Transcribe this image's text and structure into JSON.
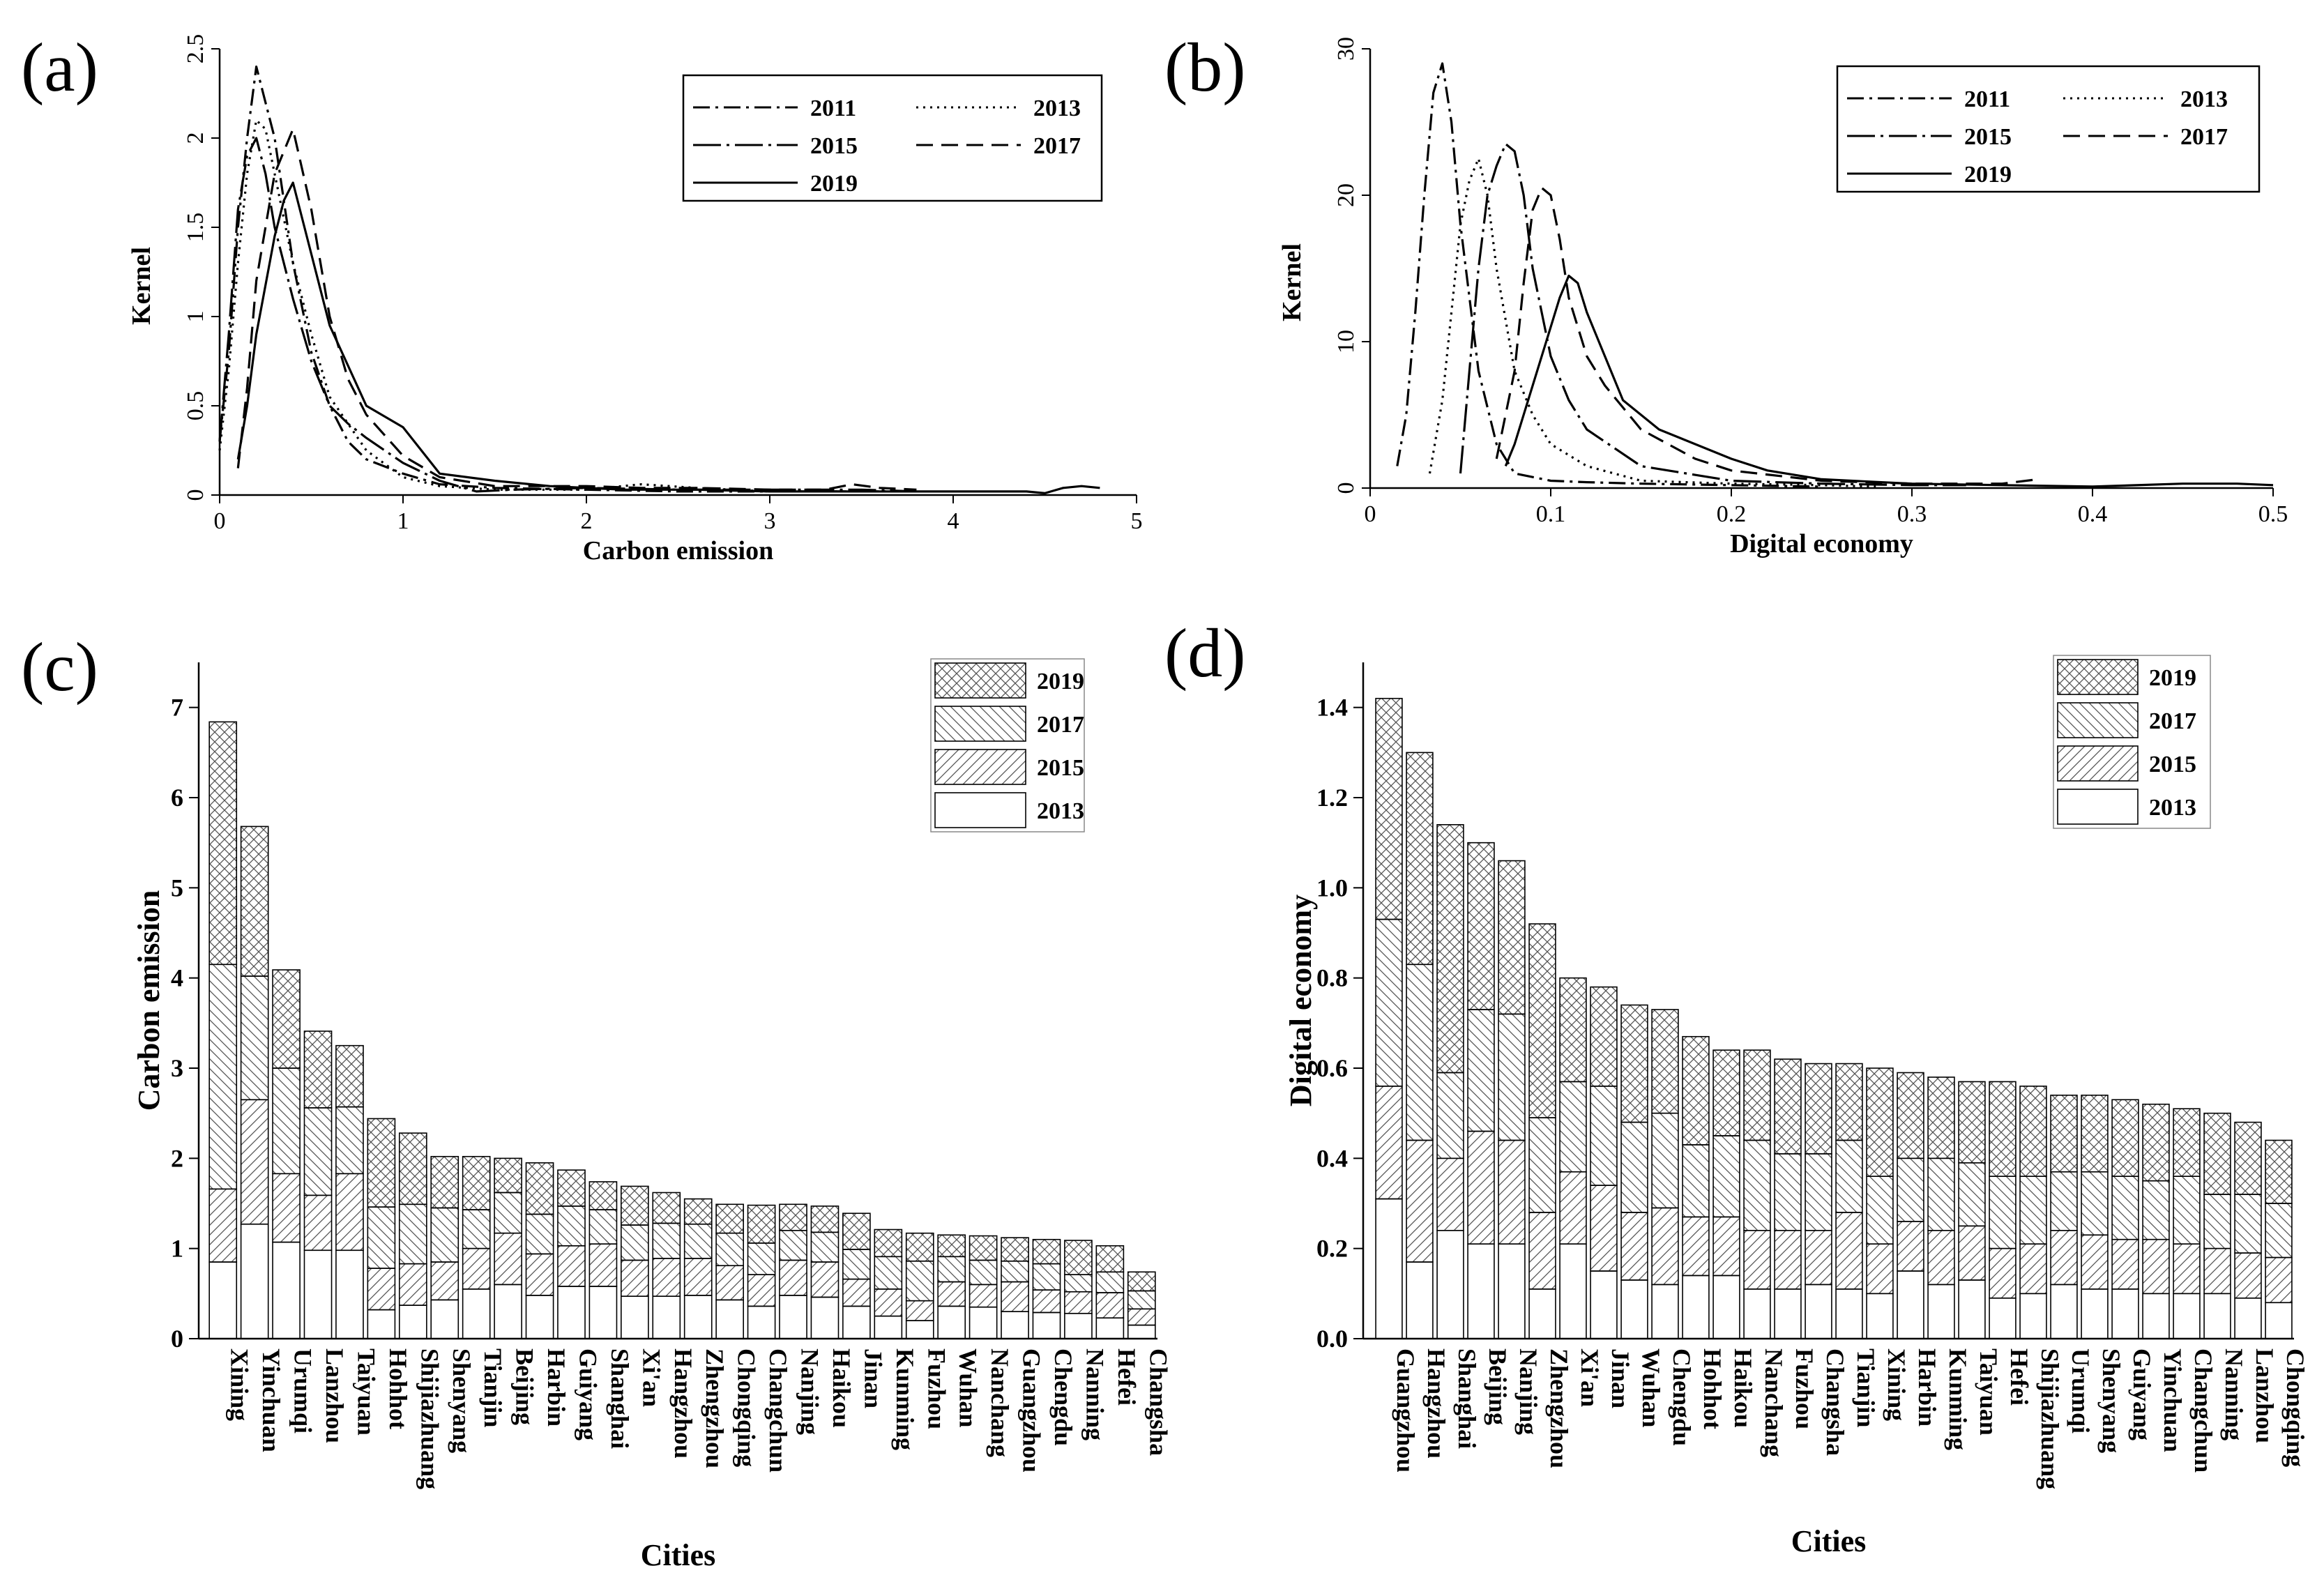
{
  "chart_data": [
    {
      "panel": "(a)",
      "type": "line",
      "xlabel": "Carbon emission",
      "ylabel": "Kernel",
      "xlim": [
        0,
        5
      ],
      "ylim": [
        0,
        2.5
      ],
      "xticks": [
        "0",
        "1",
        "2",
        "3",
        "4",
        "5"
      ],
      "yticks": [
        "0",
        "0.5",
        "1",
        "1.5",
        "2",
        "2.5"
      ],
      "legend_position": "top-right",
      "series": [
        {
          "name": "2011",
          "dash": "dash-dot",
          "x": [
            0,
            0.05,
            0.1,
            0.15,
            0.2,
            0.3,
            0.4,
            0.5,
            0.6,
            0.7,
            0.8,
            1.0,
            1.2,
            1.5,
            2,
            2.5,
            3,
            3.5,
            3.8
          ],
          "y": [
            0.3,
            0.8,
            1.5,
            2.0,
            2.4,
            2.0,
            1.3,
            0.8,
            0.5,
            0.3,
            0.2,
            0.12,
            0.06,
            0.04,
            0.03,
            0.02,
            0.02,
            0.02,
            0.02
          ]
        },
        {
          "name": "2013",
          "dash": "dot",
          "x": [
            0,
            0.05,
            0.1,
            0.15,
            0.2,
            0.25,
            0.3,
            0.4,
            0.5,
            0.6,
            0.8,
            1.0,
            1.2,
            1.5,
            2,
            2.3,
            2.6,
            3,
            3.5,
            3.8
          ],
          "y": [
            0.25,
            0.7,
            1.3,
            1.8,
            2.1,
            2.05,
            1.8,
            1.3,
            0.9,
            0.55,
            0.25,
            0.1,
            0.05,
            0.03,
            0.03,
            0.06,
            0.04,
            0.02,
            0.02,
            0.02
          ]
        },
        {
          "name": "2015",
          "dash": "dash-dot-long",
          "x": [
            0,
            0.05,
            0.1,
            0.15,
            0.2,
            0.25,
            0.3,
            0.4,
            0.5,
            0.6,
            0.7,
            0.8,
            1.0,
            1.2,
            1.4,
            1.6,
            2,
            2.5,
            3,
            3.5,
            3.8
          ],
          "y": [
            0.3,
            0.9,
            1.6,
            1.9,
            2.0,
            1.8,
            1.5,
            1.1,
            0.75,
            0.5,
            0.4,
            0.32,
            0.18,
            0.08,
            0.02,
            0.03,
            0.04,
            0.03,
            0.03,
            0.03,
            0.02
          ]
        },
        {
          "name": "2017",
          "dash": "dash",
          "x": [
            0.1,
            0.15,
            0.2,
            0.3,
            0.4,
            0.5,
            0.6,
            0.7,
            0.8,
            1.0,
            1.2,
            1.5,
            2,
            2.3,
            2.6,
            3,
            3.3,
            3.45,
            3.6,
            3.8
          ],
          "y": [
            0.15,
            0.6,
            1.2,
            1.8,
            2.05,
            1.6,
            1.0,
            0.65,
            0.45,
            0.22,
            0.1,
            0.05,
            0.05,
            0.04,
            0.04,
            0.03,
            0.03,
            0.06,
            0.04,
            0.03
          ]
        },
        {
          "name": "2019",
          "dash": "solid",
          "x": [
            0.1,
            0.15,
            0.2,
            0.3,
            0.35,
            0.4,
            0.5,
            0.6,
            0.8,
            1.0,
            1.2,
            1.5,
            1.8,
            2.2,
            2.6,
            3,
            3.5,
            4,
            4.4,
            4.5,
            4.6,
            4.7,
            4.8
          ],
          "y": [
            0.2,
            0.5,
            0.9,
            1.45,
            1.65,
            1.75,
            1.35,
            0.95,
            0.5,
            0.38,
            0.12,
            0.08,
            0.05,
            0.03,
            0.03,
            0.02,
            0.02,
            0.02,
            0.02,
            0.01,
            0.04,
            0.05,
            0.04
          ]
        }
      ]
    },
    {
      "panel": "(b)",
      "type": "line",
      "xlabel": "Digital economy",
      "ylabel": "Kernel",
      "xlim": [
        0,
        0.5
      ],
      "ylim": [
        0,
        30
      ],
      "xticks": [
        "0",
        "0.1",
        "0.2",
        "0.3",
        "0.4",
        "0.5"
      ],
      "yticks": [
        "0",
        "10",
        "20",
        "30"
      ],
      "legend_position": "top-right",
      "series": [
        {
          "name": "2011",
          "dash": "dash-dot",
          "x": [
            0.015,
            0.02,
            0.025,
            0.03,
            0.035,
            0.04,
            0.045,
            0.05,
            0.06,
            0.07,
            0.08,
            0.1,
            0.12,
            0.15,
            0.2,
            0.25
          ],
          "y": [
            1.5,
            5,
            12,
            20,
            27,
            29,
            25,
            18,
            8,
            3,
            1,
            0.5,
            0.4,
            0.3,
            0.2,
            0.1
          ]
        },
        {
          "name": "2013",
          "dash": "dot",
          "x": [
            0.033,
            0.04,
            0.045,
            0.05,
            0.055,
            0.06,
            0.065,
            0.07,
            0.08,
            0.09,
            0.1,
            0.12,
            0.15,
            0.2,
            0.25,
            0.28
          ],
          "y": [
            1,
            6,
            12,
            18,
            21,
            22.5,
            20,
            15,
            8,
            5,
            3,
            1.5,
            0.5,
            0.3,
            0.2,
            0.1
          ]
        },
        {
          "name": "2015",
          "dash": "dash-dot-long",
          "x": [
            0.05,
            0.055,
            0.06,
            0.065,
            0.07,
            0.075,
            0.08,
            0.085,
            0.09,
            0.1,
            0.11,
            0.12,
            0.15,
            0.2,
            0.25,
            0.3,
            0.33
          ],
          "y": [
            1,
            8,
            15,
            20,
            22,
            23.5,
            23,
            20,
            15,
            9,
            6,
            4,
            1.5,
            0.5,
            0.3,
            0.2,
            0.2
          ]
        },
        {
          "name": "2017",
          "dash": "dash",
          "x": [
            0.07,
            0.08,
            0.085,
            0.09,
            0.095,
            0.1,
            0.105,
            0.11,
            0.12,
            0.13,
            0.15,
            0.18,
            0.2,
            0.25,
            0.3,
            0.35,
            0.37
          ],
          "y": [
            2,
            8,
            14,
            19,
            20.5,
            20,
            17,
            13,
            9,
            7,
            4,
            2,
            1.2,
            0.5,
            0.3,
            0.3,
            0.6
          ]
        },
        {
          "name": "2019",
          "dash": "solid",
          "x": [
            0.075,
            0.08,
            0.09,
            0.1,
            0.105,
            0.11,
            0.115,
            0.12,
            0.13,
            0.14,
            0.16,
            0.18,
            0.2,
            0.22,
            0.25,
            0.3,
            0.35,
            0.4,
            0.45,
            0.48,
            0.5
          ],
          "y": [
            1.5,
            3,
            7,
            11,
            13,
            14.5,
            14,
            12,
            9,
            6,
            4,
            3,
            2,
            1.2,
            0.6,
            0.3,
            0.2,
            0.1,
            0.3,
            0.3,
            0.2
          ]
        }
      ]
    },
    {
      "panel": "(c)",
      "type": "bar",
      "stacked": true,
      "xlabel": "Cities",
      "ylabel": "Carbon emission",
      "ylim": [
        0,
        7.5
      ],
      "yticks": [
        "0",
        "1",
        "2",
        "3",
        "4",
        "5",
        "6",
        "7"
      ],
      "legend_position": "top-right",
      "categories": [
        "Xining",
        "Yinchuan",
        "Urumqi",
        "Lanzhou",
        "Taiyuan",
        "Hohhot",
        "Shijiazhuang",
        "Shenyang",
        "Tianjin",
        "Beijing",
        "Harbin",
        "Guiyang",
        "Shanghai",
        "Xi'an",
        "Hangzhou",
        "Zhengzhou",
        "Chongqing",
        "Changchun",
        "Nanjing",
        "Haikou",
        "Jinan",
        "Kunming",
        "Fuzhou",
        "Wuhan",
        "Nanchang",
        "Guangzhou",
        "Chengdu",
        "Nanning",
        "Hefei",
        "Changsha"
      ],
      "series": [
        {
          "name": "2013",
          "values": [
            0.85,
            1.27,
            1.07,
            0.98,
            0.98,
            0.32,
            0.37,
            0.43,
            0.55,
            0.6,
            0.48,
            0.58,
            0.58,
            0.47,
            0.47,
            0.48,
            0.43,
            0.36,
            0.48,
            0.46,
            0.36,
            0.25,
            0.2,
            0.36,
            0.35,
            0.3,
            0.29,
            0.28,
            0.23,
            0.15
          ]
        },
        {
          "name": "2015",
          "values": [
            0.81,
            1.38,
            0.76,
            0.61,
            0.85,
            0.46,
            0.46,
            0.42,
            0.45,
            0.57,
            0.46,
            0.45,
            0.47,
            0.4,
            0.42,
            0.41,
            0.38,
            0.35,
            0.39,
            0.39,
            0.3,
            0.3,
            0.22,
            0.27,
            0.25,
            0.33,
            0.25,
            0.24,
            0.28,
            0.18
          ]
        },
        {
          "name": "2017",
          "values": [
            2.49,
            1.37,
            1.17,
            0.97,
            0.74,
            0.68,
            0.66,
            0.6,
            0.43,
            0.45,
            0.44,
            0.44,
            0.38,
            0.39,
            0.39,
            0.38,
            0.36,
            0.35,
            0.33,
            0.33,
            0.33,
            0.36,
            0.44,
            0.28,
            0.27,
            0.23,
            0.29,
            0.19,
            0.23,
            0.2
          ]
        },
        {
          "name": "2019",
          "values": [
            2.69,
            1.66,
            1.09,
            0.85,
            0.68,
            0.98,
            0.79,
            0.57,
            0.59,
            0.38,
            0.57,
            0.4,
            0.31,
            0.43,
            0.34,
            0.28,
            0.32,
            0.42,
            0.29,
            0.29,
            0.4,
            0.3,
            0.31,
            0.24,
            0.27,
            0.26,
            0.27,
            0.38,
            0.29,
            0.21
          ]
        }
      ]
    },
    {
      "panel": "(d)",
      "type": "bar",
      "stacked": true,
      "xlabel": "Cities",
      "ylabel": "Digital economy",
      "ylim": [
        0,
        1.5
      ],
      "yticks": [
        "0.0",
        "0.2",
        "0.4",
        "0.6",
        "0.8",
        "1.0",
        "1.2",
        "1.4"
      ],
      "legend_position": "top-right",
      "categories": [
        "Guangzhou",
        "Hangzhou",
        "Shanghai",
        "Beijing",
        "Nanjing",
        "Zhengzhou",
        "Xi'an",
        "Jinan",
        "Wuhan",
        "Chengdu",
        "Hohhot",
        "Haikou",
        "Nanchang",
        "Fuzhou",
        "Changsha",
        "Tianjin",
        "Xining",
        "Harbin",
        "Kunming",
        "Taiyuan",
        "Hefei",
        "Shijiazhuang",
        "Urumqi",
        "Shenyang",
        "Guiyang",
        "Yinchuan",
        "Changchun",
        "Nanning",
        "Lanzhou",
        "Chongqing"
      ],
      "series": [
        {
          "name": "2013",
          "values": [
            0.31,
            0.17,
            0.24,
            0.21,
            0.21,
            0.11,
            0.21,
            0.15,
            0.13,
            0.12,
            0.14,
            0.14,
            0.11,
            0.11,
            0.12,
            0.11,
            0.1,
            0.15,
            0.12,
            0.13,
            0.09,
            0.1,
            0.12,
            0.11,
            0.11,
            0.1,
            0.1,
            0.1,
            0.09,
            0.08
          ]
        },
        {
          "name": "2015",
          "values": [
            0.25,
            0.27,
            0.16,
            0.25,
            0.23,
            0.17,
            0.16,
            0.19,
            0.15,
            0.17,
            0.13,
            0.13,
            0.13,
            0.13,
            0.12,
            0.17,
            0.11,
            0.11,
            0.12,
            0.12,
            0.11,
            0.11,
            0.12,
            0.12,
            0.11,
            0.12,
            0.11,
            0.1,
            0.1,
            0.1
          ]
        },
        {
          "name": "2017",
          "values": [
            0.37,
            0.39,
            0.19,
            0.27,
            0.28,
            0.21,
            0.2,
            0.22,
            0.2,
            0.21,
            0.16,
            0.18,
            0.2,
            0.17,
            0.17,
            0.16,
            0.15,
            0.14,
            0.16,
            0.14,
            0.16,
            0.15,
            0.13,
            0.14,
            0.14,
            0.13,
            0.15,
            0.12,
            0.13,
            0.12
          ]
        },
        {
          "name": "2019",
          "values": [
            0.49,
            0.47,
            0.55,
            0.37,
            0.34,
            0.43,
            0.23,
            0.22,
            0.26,
            0.23,
            0.24,
            0.19,
            0.2,
            0.21,
            0.2,
            0.17,
            0.24,
            0.19,
            0.18,
            0.18,
            0.21,
            0.2,
            0.17,
            0.17,
            0.17,
            0.17,
            0.15,
            0.18,
            0.16,
            0.14
          ]
        }
      ]
    }
  ]
}
